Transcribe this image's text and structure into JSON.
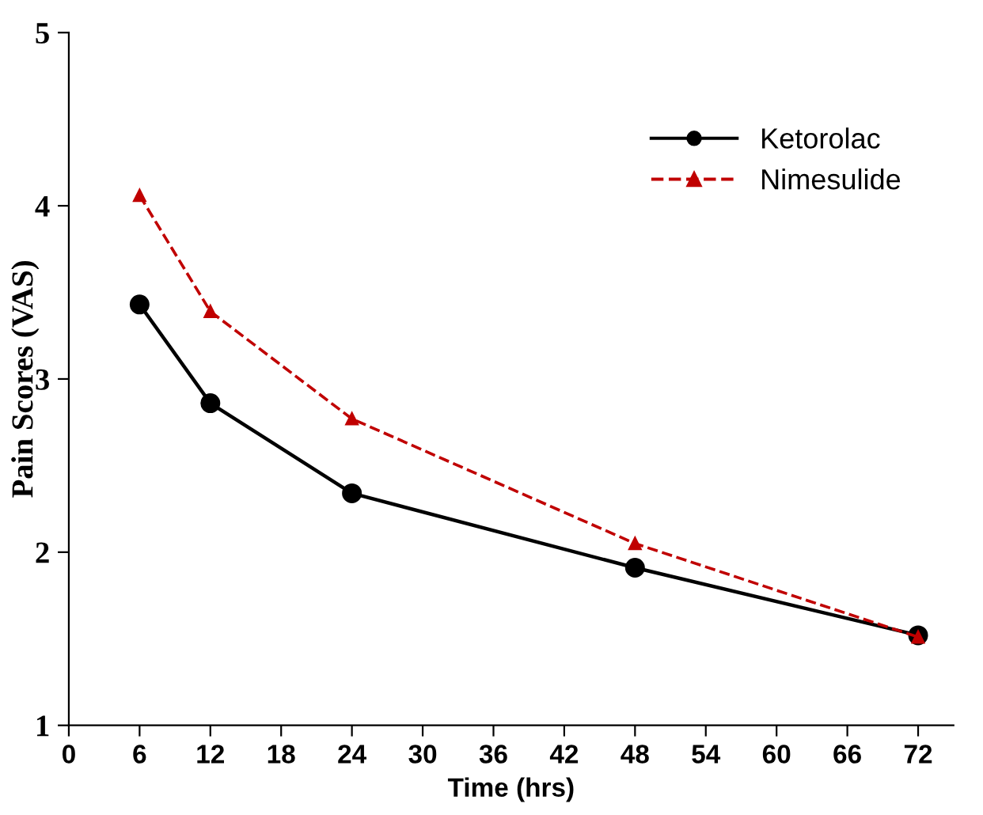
{
  "chart_data": {
    "type": "line",
    "xlabel": "Time (hrs)",
    "ylabel": "Pain Scores (VAS)",
    "x": [
      6,
      12,
      24,
      48,
      72
    ],
    "series": [
      {
        "name": "Ketorolac",
        "color": "#000000",
        "values": [
          3.43,
          2.86,
          2.34,
          1.91,
          1.52
        ],
        "marker": "circle",
        "line_style": "solid"
      },
      {
        "name": "Nimesulide",
        "color": "#c00000",
        "values": [
          4.06,
          3.39,
          2.77,
          2.05,
          1.51
        ],
        "marker": "triangle",
        "line_style": "dashed"
      }
    ],
    "xlim": [
      0,
      75
    ],
    "xticks": [
      0,
      6,
      12,
      18,
      24,
      30,
      36,
      42,
      48,
      54,
      60,
      66,
      72
    ],
    "ylim": [
      1,
      5
    ],
    "yticks": [
      1,
      2,
      3,
      4,
      5
    ],
    "grid": false,
    "legend": "top right"
  }
}
